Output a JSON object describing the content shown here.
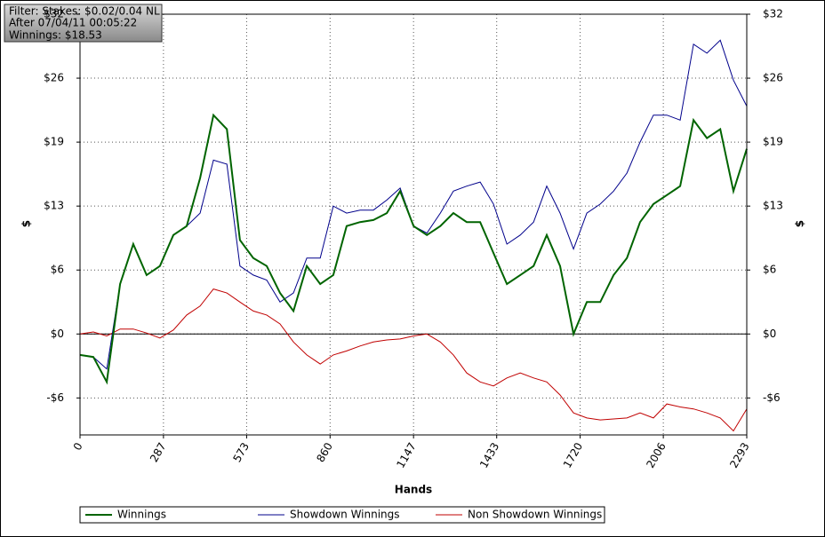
{
  "chart_data": {
    "type": "line",
    "annotations": [
      "Filter: Stakes: $0.02/0.04 NL",
      "After 07/04/11 00:05:22",
      "Winnings: $18.53"
    ],
    "xlabel": "Hands",
    "ylabel": "$",
    "y2label": "$",
    "x": [
      0,
      46,
      92,
      138,
      183,
      229,
      275,
      321,
      367,
      413,
      459,
      505,
      550,
      596,
      642,
      688,
      734,
      780,
      826,
      871,
      917,
      963,
      1009,
      1055,
      1101,
      1147,
      1193,
      1239,
      1284,
      1330,
      1376,
      1422,
      1468,
      1514,
      1560,
      1605,
      1651,
      1697,
      1743,
      1789,
      1835,
      1881,
      1926,
      1972,
      2018,
      2064,
      2110,
      2156,
      2202,
      2247,
      2293
    ],
    "series": [
      {
        "name": "Winnings",
        "color": "#006400",
        "values": [
          -2.1,
          -2.3,
          -4.8,
          5.0,
          9.0,
          5.9,
          6.8,
          9.9,
          10.8,
          15.6,
          21.9,
          20.5,
          9.4,
          7.6,
          6.8,
          4.1,
          2.3,
          6.8,
          5.0,
          5.9,
          10.8,
          11.2,
          11.4,
          12.1,
          14.3,
          10.8,
          9.9,
          10.8,
          12.1,
          11.2,
          11.2,
          8.1,
          5.0,
          5.9,
          6.8,
          9.9,
          6.8,
          0,
          3.2,
          3.2,
          5.9,
          7.6,
          11.2,
          13.0,
          13.9,
          14.8,
          21.4,
          19.6,
          20.5,
          14.3,
          18.53
        ]
      },
      {
        "name": "Showdown Winnings",
        "color": "#00008b",
        "values": [
          -2.1,
          -2.3,
          -3.5,
          5.0,
          9.0,
          5.9,
          6.8,
          9.9,
          10.8,
          12.1,
          17.4,
          17.0,
          6.8,
          5.9,
          5.4,
          3.2,
          4.1,
          7.6,
          7.6,
          12.8,
          12.1,
          12.4,
          12.4,
          13.4,
          14.6,
          10.8,
          10.1,
          12.1,
          14.3,
          14.8,
          15.2,
          13.0,
          9.0,
          9.9,
          11.2,
          14.8,
          12.1,
          8.5,
          12.1,
          13.0,
          14.3,
          16.1,
          19.2,
          21.9,
          21.9,
          21.4,
          29.0,
          28.1,
          29.4,
          25.4,
          22.8
        ]
      },
      {
        "name": "Non Showdown Winnings",
        "color": "#c00000",
        "values": [
          0,
          0.2,
          -0.2,
          0.5,
          0.5,
          0.1,
          -0.4,
          0.4,
          1.9,
          2.8,
          4.5,
          4.1,
          3.2,
          2.3,
          1.9,
          1.0,
          -0.8,
          -2.1,
          -3.0,
          -2.1,
          -1.7,
          -1.2,
          -0.8,
          -0.6,
          -0.5,
          -0.2,
          0,
          -0.8,
          -2.1,
          -3.9,
          -4.8,
          -5.2,
          -4.4,
          -3.9,
          -4.4,
          -4.8,
          -6.1,
          -7.9,
          -8.4,
          -8.6,
          -8.5,
          -8.4,
          -7.9,
          -8.4,
          -7.0,
          -7.3,
          -7.5,
          -7.9,
          -8.4,
          -9.7,
          -7.5
        ]
      }
    ],
    "xlim": [
      0,
      2293
    ],
    "xticks": [
      0,
      287,
      573,
      860,
      1147,
      1433,
      1720,
      2006,
      2293
    ],
    "ylim": [
      -10.1,
      32
    ],
    "yticks": [
      {
        "value": -6.4,
        "label": "-$6"
      },
      {
        "value": 0,
        "label": "$0"
      },
      {
        "value": 6.4,
        "label": "$6"
      },
      {
        "value": 12.8,
        "label": "$13"
      },
      {
        "value": 19.2,
        "label": "$19"
      },
      {
        "value": 25.6,
        "label": "$26"
      },
      {
        "value": 32,
        "label": "$32"
      }
    ],
    "y2lim": [
      -10.1,
      32
    ],
    "y2ticks": [
      {
        "value": -6.4,
        "label": "-$6"
      },
      {
        "value": 0,
        "label": "$0"
      },
      {
        "value": 6.4,
        "label": "$6"
      },
      {
        "value": 12.8,
        "label": "$13"
      },
      {
        "value": 19.2,
        "label": "$19"
      },
      {
        "value": 25.6,
        "label": "$26"
      },
      {
        "value": 32,
        "label": "$32"
      }
    ],
    "grid": true,
    "legend": "bottom"
  }
}
